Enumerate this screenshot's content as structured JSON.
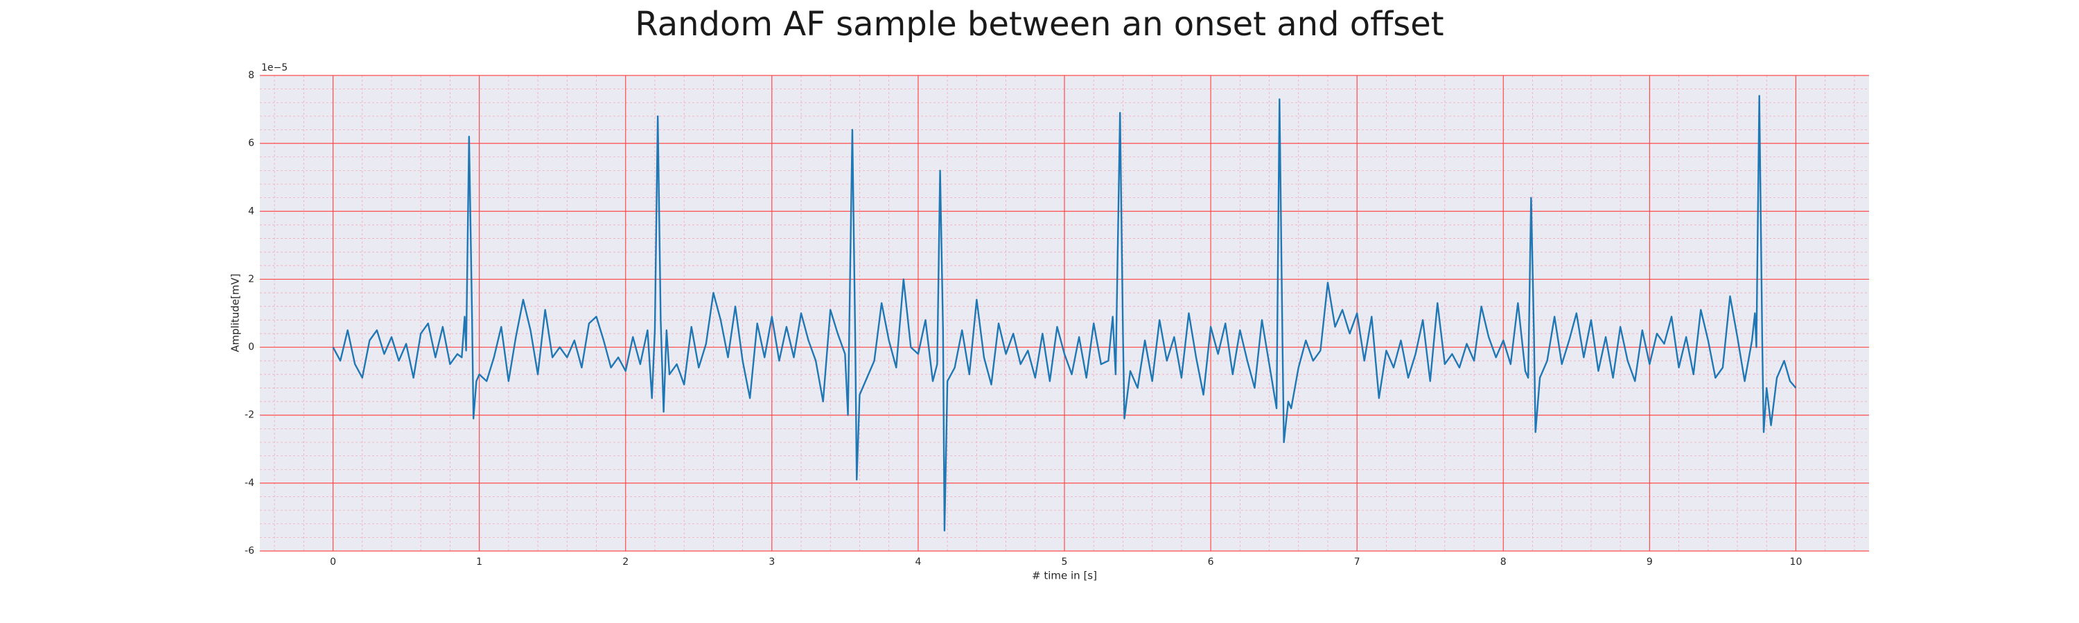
{
  "chart_data": {
    "type": "line",
    "title": "Random AF sample between an onset and offset",
    "xlabel": "# time in [s]",
    "ylabel": "Amplitude[mV]",
    "y_offset_label": "1e−5",
    "color": "#1f77b4",
    "grid": true,
    "minor_grid": true,
    "xlim": [
      -0.5,
      10.5
    ],
    "xticks": [
      0,
      1,
      2,
      3,
      4,
      5,
      6,
      7,
      8,
      9,
      10
    ],
    "ylim": [
      -6,
      8
    ],
    "yticks": [
      -6,
      -4,
      -2,
      0,
      2,
      4,
      6,
      8
    ],
    "x": [
      0,
      0.05,
      0.1,
      0.15,
      0.2,
      0.25,
      0.3,
      0.35,
      0.4,
      0.45,
      0.5,
      0.55,
      0.6,
      0.65,
      0.7,
      0.75,
      0.8,
      0.85,
      0.88,
      0.9,
      0.91,
      0.93,
      0.95,
      0.96,
      0.98,
      1.0,
      1.05,
      1.1,
      1.15,
      1.2,
      1.25,
      1.3,
      1.35,
      1.4,
      1.45,
      1.5,
      1.55,
      1.6,
      1.65,
      1.7,
      1.75,
      1.8,
      1.85,
      1.9,
      1.95,
      2.0,
      2.05,
      2.1,
      2.15,
      2.18,
      2.2,
      2.22,
      2.24,
      2.26,
      2.28,
      2.3,
      2.35,
      2.4,
      2.45,
      2.5,
      2.55,
      2.6,
      2.65,
      2.7,
      2.75,
      2.8,
      2.85,
      2.9,
      2.95,
      3.0,
      3.05,
      3.1,
      3.15,
      3.2,
      3.25,
      3.3,
      3.35,
      3.4,
      3.45,
      3.5,
      3.52,
      3.55,
      3.57,
      3.58,
      3.6,
      3.65,
      3.7,
      3.75,
      3.8,
      3.85,
      3.9,
      3.95,
      4.0,
      4.05,
      4.1,
      4.13,
      4.15,
      4.17,
      4.18,
      4.2,
      4.25,
      4.3,
      4.35,
      4.4,
      4.45,
      4.5,
      4.55,
      4.6,
      4.65,
      4.7,
      4.75,
      4.8,
      4.85,
      4.9,
      4.95,
      5.0,
      5.05,
      5.1,
      5.15,
      5.2,
      5.25,
      5.3,
      5.33,
      5.35,
      5.38,
      5.4,
      5.41,
      5.45,
      5.5,
      5.55,
      5.6,
      5.65,
      5.7,
      5.75,
      5.8,
      5.85,
      5.9,
      5.95,
      6.0,
      6.05,
      6.1,
      6.15,
      6.2,
      6.25,
      6.3,
      6.35,
      6.4,
      6.45,
      6.47,
      6.49,
      6.5,
      6.53,
      6.55,
      6.6,
      6.65,
      6.7,
      6.75,
      6.8,
      6.85,
      6.9,
      6.95,
      7.0,
      7.05,
      7.1,
      7.15,
      7.2,
      7.25,
      7.3,
      7.35,
      7.4,
      7.45,
      7.5,
      7.55,
      7.6,
      7.65,
      7.7,
      7.75,
      7.8,
      7.85,
      7.9,
      7.95,
      8.0,
      8.05,
      8.1,
      8.15,
      8.17,
      8.19,
      8.21,
      8.22,
      8.25,
      8.3,
      8.35,
      8.4,
      8.45,
      8.5,
      8.55,
      8.6,
      8.65,
      8.7,
      8.75,
      8.8,
      8.85,
      8.9,
      8.95,
      9.0,
      9.05,
      9.1,
      9.15,
      9.2,
      9.25,
      9.3,
      9.35,
      9.4,
      9.45,
      9.5,
      9.55,
      9.6,
      9.65,
      9.7,
      9.72,
      9.73,
      9.75,
      9.77,
      9.78,
      9.8,
      9.83,
      9.87,
      9.92,
      9.96,
      10.0
    ],
    "values": [
      0,
      -0.4,
      0.5,
      -0.5,
      -0.9,
      0.2,
      0.5,
      -0.2,
      0.3,
      -0.4,
      0.1,
      -0.9,
      0.4,
      0.7,
      -0.3,
      0.6,
      -0.5,
      -0.2,
      -0.3,
      0.9,
      -0.1,
      6.2,
      1.0,
      -2.1,
      -1.0,
      -0.8,
      -1.0,
      -0.3,
      0.6,
      -1.0,
      0.3,
      1.4,
      0.5,
      -0.8,
      1.1,
      -0.3,
      0.0,
      -0.3,
      0.2,
      -0.6,
      0.7,
      0.9,
      0.2,
      -0.6,
      -0.3,
      -0.7,
      0.3,
      -0.5,
      0.5,
      -1.5,
      0.5,
      6.8,
      0.8,
      -1.9,
      0.5,
      -0.8,
      -0.5,
      -1.1,
      0.6,
      -0.6,
      0.1,
      1.6,
      0.8,
      -0.3,
      1.2,
      -0.4,
      -1.5,
      0.7,
      -0.3,
      0.9,
      -0.4,
      0.6,
      -0.3,
      1.0,
      0.2,
      -0.4,
      -1.6,
      1.1,
      0.4,
      -0.2,
      -2.0,
      6.4,
      0.2,
      -3.9,
      -1.4,
      -0.9,
      -0.4,
      1.3,
      0.2,
      -0.6,
      2.0,
      0.0,
      -0.2,
      0.8,
      -1.0,
      -0.5,
      5.2,
      0.5,
      -5.4,
      -1.0,
      -0.6,
      0.5,
      -0.8,
      1.4,
      -0.3,
      -1.1,
      0.7,
      -0.2,
      0.4,
      -0.5,
      -0.1,
      -0.9,
      0.4,
      -1.0,
      0.6,
      -0.2,
      -0.8,
      0.3,
      -0.9,
      0.7,
      -0.5,
      -0.4,
      0.9,
      -0.8,
      6.9,
      0.4,
      -2.1,
      -0.7,
      -1.2,
      0.2,
      -1.0,
      0.8,
      -0.4,
      0.3,
      -0.9,
      1.0,
      -0.3,
      -1.4,
      0.6,
      -0.2,
      0.7,
      -0.8,
      0.5,
      -0.4,
      -1.2,
      0.8,
      -0.5,
      -1.8,
      7.3,
      0.3,
      -2.8,
      -1.6,
      -1.8,
      -0.6,
      0.2,
      -0.4,
      -0.1,
      1.9,
      0.6,
      1.1,
      0.4,
      1.0,
      -0.4,
      0.9,
      -1.5,
      -0.1,
      -0.6,
      0.2,
      -0.9,
      -0.2,
      0.8,
      -1.0,
      1.3,
      -0.5,
      -0.2,
      -0.6,
      0.1,
      -0.4,
      1.2,
      0.3,
      -0.3,
      0.2,
      -0.5,
      1.3,
      -0.7,
      -0.9,
      4.4,
      0.3,
      -2.5,
      -0.9,
      -0.4,
      0.9,
      -0.5,
      0.2,
      1.0,
      -0.3,
      0.8,
      -0.7,
      0.3,
      -0.9,
      0.6,
      -0.4,
      -1.0,
      0.5,
      -0.5,
      0.4,
      0.1,
      0.9,
      -0.6,
      0.3,
      -0.8,
      1.1,
      0.2,
      -0.9,
      -0.6,
      1.5,
      0.3,
      -1.0,
      0.2,
      1.0,
      0.0,
      7.4,
      0.2,
      -2.5,
      -1.2,
      -2.3,
      -0.9,
      -0.4,
      -1.0,
      -1.2
    ]
  }
}
